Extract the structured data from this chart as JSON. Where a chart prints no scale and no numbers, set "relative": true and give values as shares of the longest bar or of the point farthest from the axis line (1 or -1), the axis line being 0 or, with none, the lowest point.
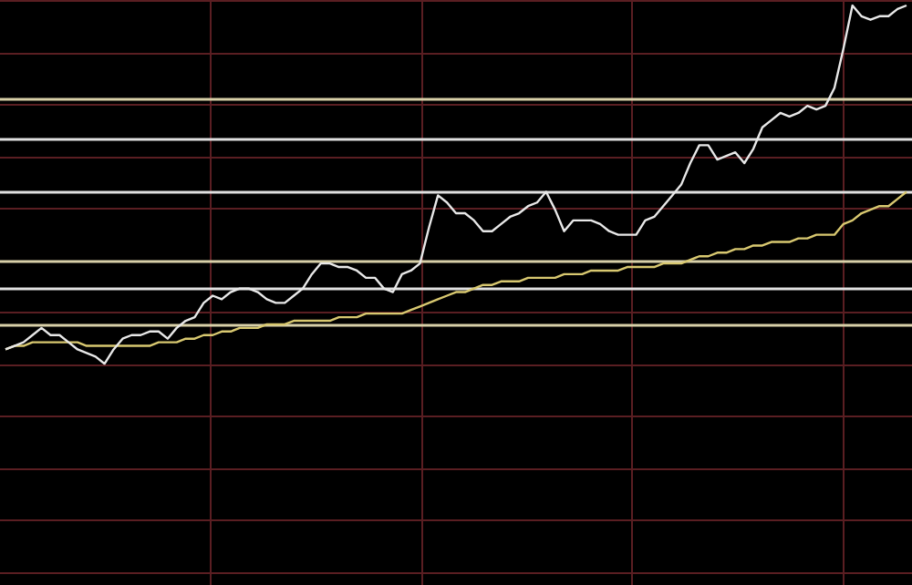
{
  "chart_data": {
    "type": "line",
    "relative": true,
    "grid": true,
    "legend": false,
    "marker": "none",
    "line_style": "solid",
    "categories": [
      null,
      null,
      null,
      null,
      null,
      null,
      null,
      null,
      null,
      null,
      null,
      null,
      null,
      null,
      null,
      null,
      null,
      null,
      null,
      null,
      null,
      null,
      null,
      null,
      null,
      null,
      null,
      null,
      null,
      null,
      null,
      null,
      null,
      null,
      null,
      null,
      null,
      null,
      null,
      null,
      null,
      null,
      null,
      null,
      null,
      null,
      null,
      null,
      null,
      null,
      null,
      null,
      null,
      null,
      null,
      null,
      null,
      null,
      null,
      null,
      null,
      null,
      null,
      null,
      null,
      null,
      null,
      null,
      null,
      null,
      null,
      null,
      null,
      null,
      null,
      null,
      null,
      null,
      null,
      null,
      null,
      null,
      null,
      null,
      null,
      null,
      null,
      null,
      null,
      null,
      null,
      null,
      null,
      null,
      null,
      null,
      null,
      null,
      null,
      null,
      null
    ],
    "series": [
      {
        "color": "#e8e8e8",
        "values": [
          0.04,
          0.05,
          0.06,
          0.08,
          0.1,
          0.08,
          0.08,
          0.06,
          0.04,
          0.03,
          0.02,
          0,
          0.04,
          0.07,
          0.08,
          0.08,
          0.09,
          0.09,
          0.07,
          0.1,
          0.12,
          0.13,
          0.17,
          0.19,
          0.18,
          0.2,
          0.21,
          0.21,
          0.2,
          0.18,
          0.17,
          0.17,
          0.19,
          0.21,
          0.25,
          0.28,
          0.28,
          0.27,
          0.27,
          0.26,
          0.24,
          0.24,
          0.21,
          0.2,
          0.25,
          0.26,
          0.28,
          0.38,
          0.47,
          0.45,
          0.42,
          0.42,
          0.4,
          0.37,
          0.37,
          0.39,
          0.41,
          0.42,
          0.44,
          0.45,
          0.48,
          0.43,
          0.37,
          0.4,
          0.4,
          0.4,
          0.39,
          0.37,
          0.36,
          0.36,
          0.36,
          0.4,
          0.41,
          0.44,
          0.47,
          0.5,
          0.56,
          0.61,
          0.61,
          0.57,
          0.58,
          0.59,
          0.56,
          0.6,
          0.66,
          0.68,
          0.7,
          0.69,
          0.7,
          0.72,
          0.71,
          0.72,
          0.77,
          0.88,
          1,
          0.97,
          0.96,
          0.97,
          0.97,
          0.99,
          1
        ]
      },
      {
        "color": "#d8c870",
        "values": [
          0.04,
          0.05,
          0.05,
          0.06,
          0.06,
          0.06,
          0.06,
          0.06,
          0.06,
          0.05,
          0.05,
          0.05,
          0.05,
          0.05,
          0.05,
          0.05,
          0.05,
          0.06,
          0.06,
          0.06,
          0.07,
          0.07,
          0.08,
          0.08,
          0.09,
          0.09,
          0.1,
          0.1,
          0.1,
          0.11,
          0.11,
          0.11,
          0.12,
          0.12,
          0.12,
          0.12,
          0.12,
          0.13,
          0.13,
          0.13,
          0.14,
          0.14,
          0.14,
          0.14,
          0.14,
          0.15,
          0.16,
          0.17,
          0.18,
          0.19,
          0.2,
          0.2,
          0.21,
          0.22,
          0.22,
          0.23,
          0.23,
          0.23,
          0.24,
          0.24,
          0.24,
          0.24,
          0.25,
          0.25,
          0.25,
          0.26,
          0.26,
          0.26,
          0.26,
          0.27,
          0.27,
          0.27,
          0.27,
          0.28,
          0.28,
          0.28,
          0.29,
          0.3,
          0.3,
          0.31,
          0.31,
          0.32,
          0.32,
          0.33,
          0.33,
          0.34,
          0.34,
          0.34,
          0.35,
          0.35,
          0.36,
          0.36,
          0.36,
          0.39,
          0.4,
          0.42,
          0.43,
          0.44,
          0.44,
          0.46,
          0.48
        ]
      }
    ],
    "ref_lines": [
      {
        "axis": "y",
        "value": 0.74,
        "color": "#d8d0a8"
      },
      {
        "axis": "y",
        "value": 0.63,
        "color": "#e0e0e0"
      },
      {
        "axis": "y",
        "value": 0.48,
        "color": "#e0e0e0"
      },
      {
        "axis": "y",
        "value": 0.29,
        "color": "#d8d0a8"
      },
      {
        "axis": "y",
        "value": 0.21,
        "color": "#e0e0e0"
      },
      {
        "axis": "y",
        "value": 0.11,
        "color": "#d8d0a8"
      }
    ]
  }
}
